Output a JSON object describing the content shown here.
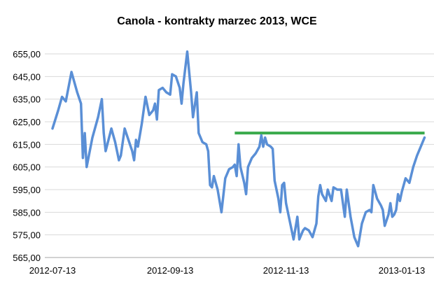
{
  "chart_data": {
    "type": "line",
    "title": "Canola - kontrakty marzec 2013, WCE",
    "xlabel": "",
    "ylabel": "",
    "ylim": [
      565,
      655
    ],
    "y_ticks": [
      "655,00",
      "645,00",
      "635,00",
      "625,00",
      "615,00",
      "605,00",
      "595,00",
      "585,00",
      "575,00",
      "565,00"
    ],
    "x_ticks": [
      "2012-07-13",
      "2012-09-13",
      "2012-11-13",
      "2013-01-13"
    ],
    "grid": true,
    "legend": "none",
    "colors": {
      "series": "#5a8fd6",
      "reference": "#3aaa4c",
      "grid": "#d9d9d9"
    },
    "series": [
      {
        "color": "#5a8fd6",
        "points": [
          [
            "2012-07-13",
            622
          ],
          [
            "2012-07-16",
            630
          ],
          [
            "2012-07-18",
            636
          ],
          [
            "2012-07-20",
            634
          ],
          [
            "2012-07-23",
            647
          ],
          [
            "2012-07-26",
            638
          ],
          [
            "2012-07-28",
            633
          ],
          [
            "2012-07-29",
            609
          ],
          [
            "2012-07-30",
            620
          ],
          [
            "2012-07-31",
            605
          ],
          [
            "2012-08-03",
            618
          ],
          [
            "2012-08-06",
            627
          ],
          [
            "2012-08-08",
            635
          ],
          [
            "2012-08-09",
            620
          ],
          [
            "2012-08-10",
            612
          ],
          [
            "2012-08-13",
            622
          ],
          [
            "2012-08-15",
            616
          ],
          [
            "2012-08-17",
            608
          ],
          [
            "2012-08-18",
            610
          ],
          [
            "2012-08-20",
            622
          ],
          [
            "2012-08-22",
            617
          ],
          [
            "2012-08-24",
            612
          ],
          [
            "2012-08-25",
            608
          ],
          [
            "2012-08-26",
            617
          ],
          [
            "2012-08-27",
            614
          ],
          [
            "2012-08-29",
            624
          ],
          [
            "2012-08-31",
            636
          ],
          [
            "2012-09-02",
            628
          ],
          [
            "2012-09-04",
            630
          ],
          [
            "2012-09-05",
            633
          ],
          [
            "2012-09-06",
            626
          ],
          [
            "2012-09-07",
            639
          ],
          [
            "2012-09-09",
            640
          ],
          [
            "2012-09-11",
            638
          ],
          [
            "2012-09-13",
            637
          ],
          [
            "2012-09-14",
            646
          ],
          [
            "2012-09-16",
            645
          ],
          [
            "2012-09-18",
            640
          ],
          [
            "2012-09-19",
            633
          ],
          [
            "2012-09-20",
            642
          ],
          [
            "2012-09-22",
            656
          ],
          [
            "2012-09-24",
            638
          ],
          [
            "2012-09-25",
            627
          ],
          [
            "2012-09-27",
            638
          ],
          [
            "2012-09-28",
            620
          ],
          [
            "2012-09-30",
            616
          ],
          [
            "2012-10-02",
            615
          ],
          [
            "2012-10-03",
            612
          ],
          [
            "2012-10-04",
            597
          ],
          [
            "2012-10-05",
            596
          ],
          [
            "2012-10-06",
            601
          ],
          [
            "2012-10-08",
            595
          ],
          [
            "2012-10-10",
            585
          ],
          [
            "2012-10-12",
            600
          ],
          [
            "2012-10-14",
            604
          ],
          [
            "2012-10-16",
            605
          ],
          [
            "2012-10-17",
            606
          ],
          [
            "2012-10-18",
            601
          ],
          [
            "2012-10-19",
            615
          ],
          [
            "2012-10-20",
            605
          ],
          [
            "2012-10-22",
            598
          ],
          [
            "2012-10-23",
            593
          ],
          [
            "2012-10-24",
            605
          ],
          [
            "2012-10-26",
            609
          ],
          [
            "2012-10-28",
            611
          ],
          [
            "2012-10-30",
            614
          ],
          [
            "2012-10-31",
            619
          ],
          [
            "2012-11-01",
            614
          ],
          [
            "2012-11-02",
            618
          ],
          [
            "2012-11-03",
            615
          ],
          [
            "2012-11-05",
            614
          ],
          [
            "2012-11-06",
            613
          ],
          [
            "2012-11-07",
            599
          ],
          [
            "2012-11-09",
            591
          ],
          [
            "2012-11-10",
            585
          ],
          [
            "2012-11-11",
            597
          ],
          [
            "2012-11-12",
            598
          ],
          [
            "2012-11-13",
            589
          ],
          [
            "2012-11-15",
            581
          ],
          [
            "2012-11-16",
            577
          ],
          [
            "2012-11-17",
            573
          ],
          [
            "2012-11-18",
            578
          ],
          [
            "2012-11-19",
            583
          ],
          [
            "2012-11-20",
            573
          ],
          [
            "2012-11-22",
            577
          ],
          [
            "2012-11-23",
            578
          ],
          [
            "2012-11-25",
            577
          ],
          [
            "2012-11-27",
            574
          ],
          [
            "2012-11-29",
            580
          ],
          [
            "2012-11-30",
            592
          ],
          [
            "2012-12-01",
            597
          ],
          [
            "2012-12-02",
            593
          ],
          [
            "2012-12-04",
            590
          ],
          [
            "2012-12-05",
            595
          ],
          [
            "2012-12-07",
            590
          ],
          [
            "2012-12-08",
            596
          ],
          [
            "2012-12-10",
            595
          ],
          [
            "2012-12-12",
            595
          ],
          [
            "2012-12-14",
            583
          ],
          [
            "2012-12-15",
            595
          ],
          [
            "2012-12-17",
            583
          ],
          [
            "2012-12-19",
            574
          ],
          [
            "2012-12-21",
            570
          ],
          [
            "2012-12-23",
            580
          ],
          [
            "2012-12-25",
            585
          ],
          [
            "2012-12-27",
            586
          ],
          [
            "2012-12-28",
            585
          ],
          [
            "2012-12-29",
            597
          ],
          [
            "2012-12-31",
            591
          ],
          [
            "2013-01-02",
            588
          ],
          [
            "2013-01-03",
            586
          ],
          [
            "2013-01-04",
            579
          ],
          [
            "2013-01-06",
            584
          ],
          [
            "2013-01-07",
            589
          ],
          [
            "2013-01-08",
            583
          ],
          [
            "2013-01-09",
            584
          ],
          [
            "2013-01-10",
            586
          ],
          [
            "2013-01-11",
            593
          ],
          [
            "2013-01-12",
            590
          ],
          [
            "2013-01-13",
            594
          ],
          [
            "2013-01-15",
            600
          ],
          [
            "2013-01-17",
            598
          ],
          [
            "2013-01-19",
            605
          ],
          [
            "2013-01-21",
            610
          ],
          [
            "2013-01-23",
            614
          ],
          [
            "2013-01-25",
            618
          ]
        ]
      }
    ],
    "reference_line": {
      "y": 620,
      "x_start": "2012-10-17",
      "x_end": "2013-01-25",
      "color": "#3aaa4c"
    }
  }
}
